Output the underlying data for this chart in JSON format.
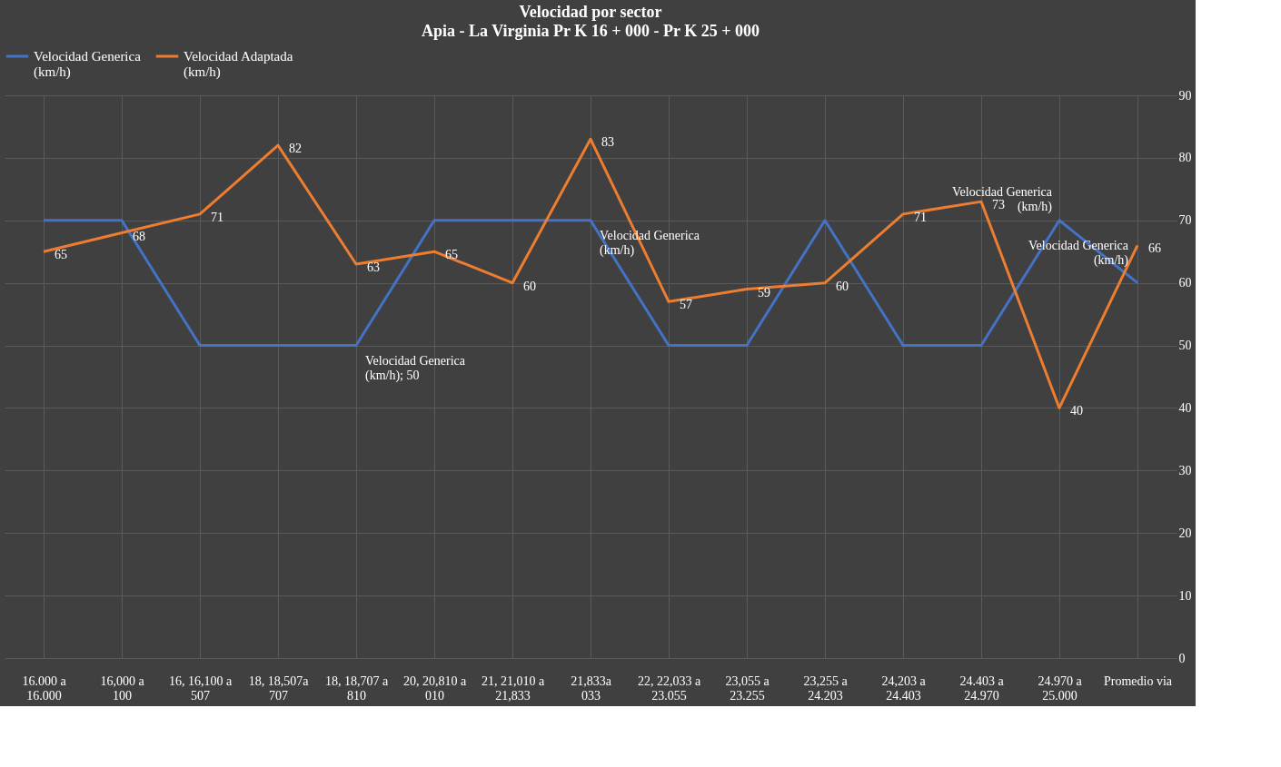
{
  "chart_data": {
    "type": "line",
    "title": "Velocidad por sector",
    "subtitle": "Apia - La Virginia  Pr K 16 + 000 - Pr K 25 + 000",
    "categories": [
      "16.000 a\n16.000",
      "16,000 a\n100",
      "16, 16,100 a\n507",
      "18, 18,507a\n707",
      "18, 18,707 a\n810",
      "20, 20,810 a\n010",
      "21,  21,010 a\n21,833",
      "21,833a\n033",
      "22,  22,033 a\n23.055",
      "23,055 a\n23.255",
      "23,255 a\n24.203",
      "24,203 a\n24.403",
      "24.403 a\n24.970",
      "24.970 a\n25.000",
      "Promedio via"
    ],
    "series": [
      {
        "name": "Velocidad Generica\n(km/h)",
        "color": "#4472c4",
        "values": [
          70,
          70,
          50,
          50,
          50,
          70,
          70,
          70,
          50,
          50,
          70,
          50,
          50,
          70,
          60
        ],
        "value_labels": [
          null,
          null,
          null,
          null,
          "Velocidad Generica\n(km/h); 50",
          null,
          null,
          "Velocidad Generica\n(km/h)",
          null,
          null,
          null,
          null,
          null,
          "Velocidad Generica\n(km/h)",
          "Velocidad Generica\n(km/h)"
        ]
      },
      {
        "name": "Velocidad Adaptada\n(km/h)",
        "color": "#ed7d31",
        "values": [
          65,
          68,
          71,
          82,
          63,
          65,
          60,
          83,
          57,
          59,
          60,
          71,
          73,
          40,
          66
        ],
        "value_labels": [
          "65",
          "68",
          "71",
          "82",
          "63",
          "65",
          "60",
          "83",
          "57",
          "59",
          "60",
          "71",
          "73",
          "40",
          "66"
        ]
      }
    ],
    "ylim": [
      0,
      90
    ],
    "yticks": [
      0,
      10,
      20,
      30,
      40,
      50,
      60,
      70,
      80,
      90
    ],
    "grid": true,
    "legend": "top",
    "marker": "none",
    "line_style": "solid"
  }
}
